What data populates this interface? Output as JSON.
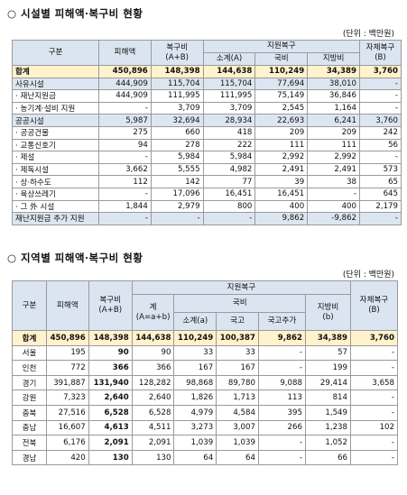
{
  "section1": {
    "title": "○ 시설별 피해액·복구비 현황",
    "unit": "(단위 : 백만원)",
    "header": {
      "category": "구분",
      "damage": "피해액",
      "recovery": "복구비",
      "recovery_note": "(A+B)",
      "support": "지원복구",
      "subtotal": "소계(A)",
      "national": "국비",
      "local": "지방비",
      "self": "자체복구",
      "self_note": "(B)"
    },
    "rows": [
      [
        "합계",
        "450,896",
        "148,398",
        "144,638",
        "110,249",
        "34,389",
        "3,760"
      ],
      [
        "사유시설",
        "444,909",
        "115,704",
        "115,704",
        "77,694",
        "38,010",
        "-"
      ],
      [
        "· 재난지원금",
        "444,909",
        "111,995",
        "111,995",
        "75,149",
        "36,846",
        "-"
      ],
      [
        "· 농기계·설비 지원",
        "-",
        "3,709",
        "3,709",
        "2,545",
        "1,164",
        "-"
      ],
      [
        "공공시설",
        "5,987",
        "32,694",
        "28,934",
        "22,693",
        "6,241",
        "3,760"
      ],
      [
        "· 공공건물",
        "275",
        "660",
        "418",
        "209",
        "209",
        "242"
      ],
      [
        "· 교통신호기",
        "94",
        "278",
        "222",
        "111",
        "111",
        "56"
      ],
      [
        "· 제설",
        "-",
        "5,984",
        "5,984",
        "2,992",
        "2,992",
        "-"
      ],
      [
        "· 제독시설",
        "3,662",
        "5,555",
        "4,982",
        "2,491",
        "2,491",
        "573"
      ],
      [
        "· 상·하수도",
        "112",
        "142",
        "77",
        "39",
        "38",
        "65"
      ],
      [
        "· 육상쓰레기",
        "-",
        "17,096",
        "16,451",
        "16,451",
        "-",
        "645"
      ],
      [
        "· 그 外 시설",
        "1,844",
        "2,979",
        "800",
        "400",
        "400",
        "2,179"
      ],
      [
        "재난지원금 추가 지원",
        "-",
        "-",
        "-",
        "9,862",
        "-9,862",
        "-"
      ]
    ]
  },
  "section2": {
    "title": "○ 지역별 피해액·복구비 현황",
    "unit": "(단위 : 백만원)",
    "header": {
      "category": "구분",
      "damage": "피해액",
      "recovery": "복구비",
      "recovery_note": "(A+B)",
      "support": "지원복구",
      "total": "계",
      "total_note": "(A=a+b)",
      "national": "국비",
      "subtotal": "소계(a)",
      "treasury": "국고",
      "treasury_extra": "국고추가",
      "local": "지방비",
      "local_note": "(b)",
      "self": "자체복구",
      "self_note": "(B)"
    },
    "rows": [
      [
        "합계",
        "450,896",
        "148,398",
        "144,638",
        "110,249",
        "100,387",
        "9,862",
        "34,389",
        "3,760"
      ],
      [
        "서울",
        "195",
        "90",
        "90",
        "33",
        "33",
        "-",
        "57",
        "-"
      ],
      [
        "인천",
        "772",
        "366",
        "366",
        "167",
        "167",
        "-",
        "199",
        "-"
      ],
      [
        "경기",
        "391,887",
        "131,940",
        "128,282",
        "98,868",
        "89,780",
        "9,088",
        "29,414",
        "3,658"
      ],
      [
        "강원",
        "7,323",
        "2,640",
        "2,640",
        "1,826",
        "1,713",
        "113",
        "814",
        "-"
      ],
      [
        "충북",
        "27,516",
        "6,528",
        "6,528",
        "4,979",
        "4,584",
        "395",
        "1,549",
        "-"
      ],
      [
        "충남",
        "16,607",
        "4,613",
        "4,511",
        "3,273",
        "3,007",
        "266",
        "1,238",
        "102"
      ],
      [
        "전북",
        "6,176",
        "2,091",
        "2,091",
        "1,039",
        "1,039",
        "-",
        "1,052",
        "-"
      ],
      [
        "경남",
        "420",
        "130",
        "130",
        "64",
        "64",
        "-",
        "66",
        "-"
      ]
    ]
  }
}
